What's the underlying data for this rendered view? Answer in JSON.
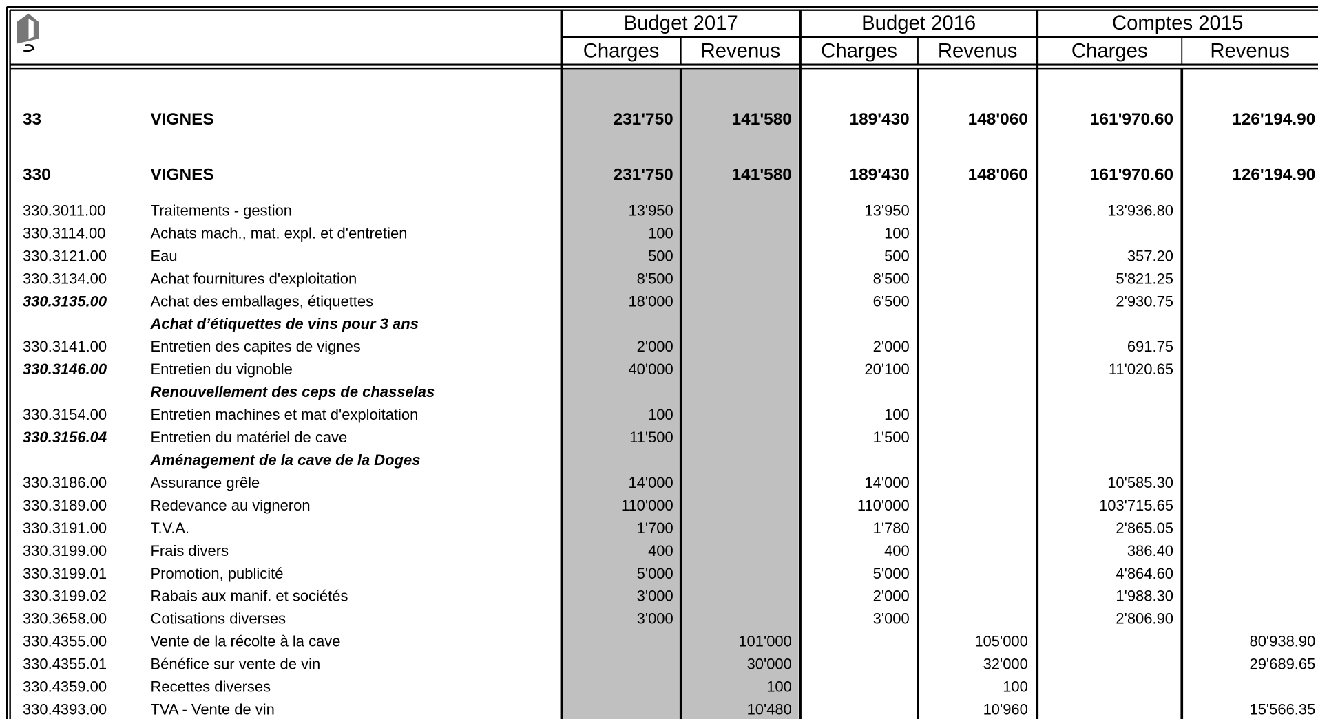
{
  "table": {
    "groups": [
      "Budget 2017",
      "Budget 2016",
      "Comptes 2015"
    ],
    "columns": [
      "Charges",
      "Revenus",
      "Charges",
      "Revenus",
      "Charges",
      "Revenus"
    ],
    "rows": [
      {
        "code": "33",
        "label": "VIGNES",
        "values": [
          "231'750",
          "141'580",
          "189'430",
          "148'060",
          "161'970.60",
          "126'194.90"
        ]
      },
      {
        "code": "330",
        "label": "VIGNES",
        "values": [
          "231'750",
          "141'580",
          "189'430",
          "148'060",
          "161'970.60",
          "126'194.90"
        ]
      },
      {
        "code": "330.3011.00",
        "label": "Traitements - gestion",
        "values": [
          "13'950",
          null,
          "13'950",
          null,
          "13'936.80",
          null
        ]
      },
      {
        "code": "330.3114.00",
        "label": "Achats mach., mat. expl. et d'entretien",
        "values": [
          "100",
          null,
          "100",
          null,
          null,
          null
        ]
      },
      {
        "code": "330.3121.00",
        "label": "Eau",
        "values": [
          "500",
          null,
          "500",
          null,
          "357.20",
          null
        ]
      },
      {
        "code": "330.3134.00",
        "label": "Achat fournitures d'exploitation",
        "values": [
          "8'500",
          null,
          "8'500",
          null,
          "5'821.25",
          null
        ]
      },
      {
        "code": "330.3135.00",
        "label": "Achat des emballages, étiquettes",
        "values": [
          "18'000",
          null,
          "6'500",
          null,
          "2'930.75",
          null
        ]
      },
      {
        "code": null,
        "label": "Achat d’étiquettes de vins pour 3 ans",
        "values": [
          null,
          null,
          null,
          null,
          null,
          null
        ]
      },
      {
        "code": "330.3141.00",
        "label": "Entretien des capites de vignes",
        "values": [
          "2'000",
          null,
          "2'000",
          null,
          "691.75",
          null
        ]
      },
      {
        "code": "330.3146.00",
        "label": "Entretien du vignoble",
        "values": [
          "40'000",
          null,
          "20'100",
          null,
          "11'020.65",
          null
        ]
      },
      {
        "code": null,
        "label": "Renouvellement des ceps de chasselas",
        "values": [
          null,
          null,
          null,
          null,
          null,
          null
        ]
      },
      {
        "code": "330.3154.00",
        "label": "Entretien machines et mat d'exploitation",
        "values": [
          "100",
          null,
          "100",
          null,
          null,
          null
        ]
      },
      {
        "code": "330.3156.04",
        "label": "Entretien du matériel de cave",
        "values": [
          "11'500",
          null,
          "1'500",
          null,
          null,
          null
        ]
      },
      {
        "code": null,
        "label": "Aménagement de la cave de la Doges",
        "values": [
          null,
          null,
          null,
          null,
          null,
          null
        ]
      },
      {
        "code": "330.3186.00",
        "label": "Assurance grêle",
        "values": [
          "14'000",
          null,
          "14'000",
          null,
          "10'585.30",
          null
        ]
      },
      {
        "code": "330.3189.00",
        "label": "Redevance au vigneron",
        "values": [
          "110'000",
          null,
          "110'000",
          null,
          "103'715.65",
          null
        ]
      },
      {
        "code": "330.3191.00",
        "label": "T.V.A.",
        "values": [
          "1'700",
          null,
          "1'780",
          null,
          "2'865.05",
          null
        ]
      },
      {
        "code": "330.3199.00",
        "label": "Frais divers",
        "values": [
          "400",
          null,
          "400",
          null,
          "386.40",
          null
        ]
      },
      {
        "code": "330.3199.01",
        "label": "Promotion, publicité",
        "values": [
          "5'000",
          null,
          "5'000",
          null,
          "4'864.60",
          null
        ]
      },
      {
        "code": "330.3199.02",
        "label": "Rabais aux manif. et sociétés",
        "values": [
          "3'000",
          null,
          "2'000",
          null,
          "1'988.30",
          null
        ]
      },
      {
        "code": "330.3658.00",
        "label": "Cotisations diverses",
        "values": [
          "3'000",
          null,
          "3'000",
          null,
          "2'806.90",
          null
        ]
      },
      {
        "code": "330.4355.00",
        "label": "Vente de la récolte à la cave",
        "values": [
          null,
          "101'000",
          null,
          "105'000",
          null,
          "80'938.90"
        ]
      },
      {
        "code": "330.4355.01",
        "label": "Bénéfice sur vente de vin",
        "values": [
          null,
          "30'000",
          null,
          "32'000",
          null,
          "29'689.65"
        ]
      },
      {
        "code": "330.4359.00",
        "label": "Recettes diverses",
        "values": [
          null,
          "100",
          null,
          "100",
          null,
          null
        ]
      },
      {
        "code": "330.4393.00",
        "label": "TVA - Vente de vin",
        "values": [
          null,
          "10'480",
          null,
          "10'960",
          null,
          "15'566.35"
        ]
      }
    ]
  }
}
